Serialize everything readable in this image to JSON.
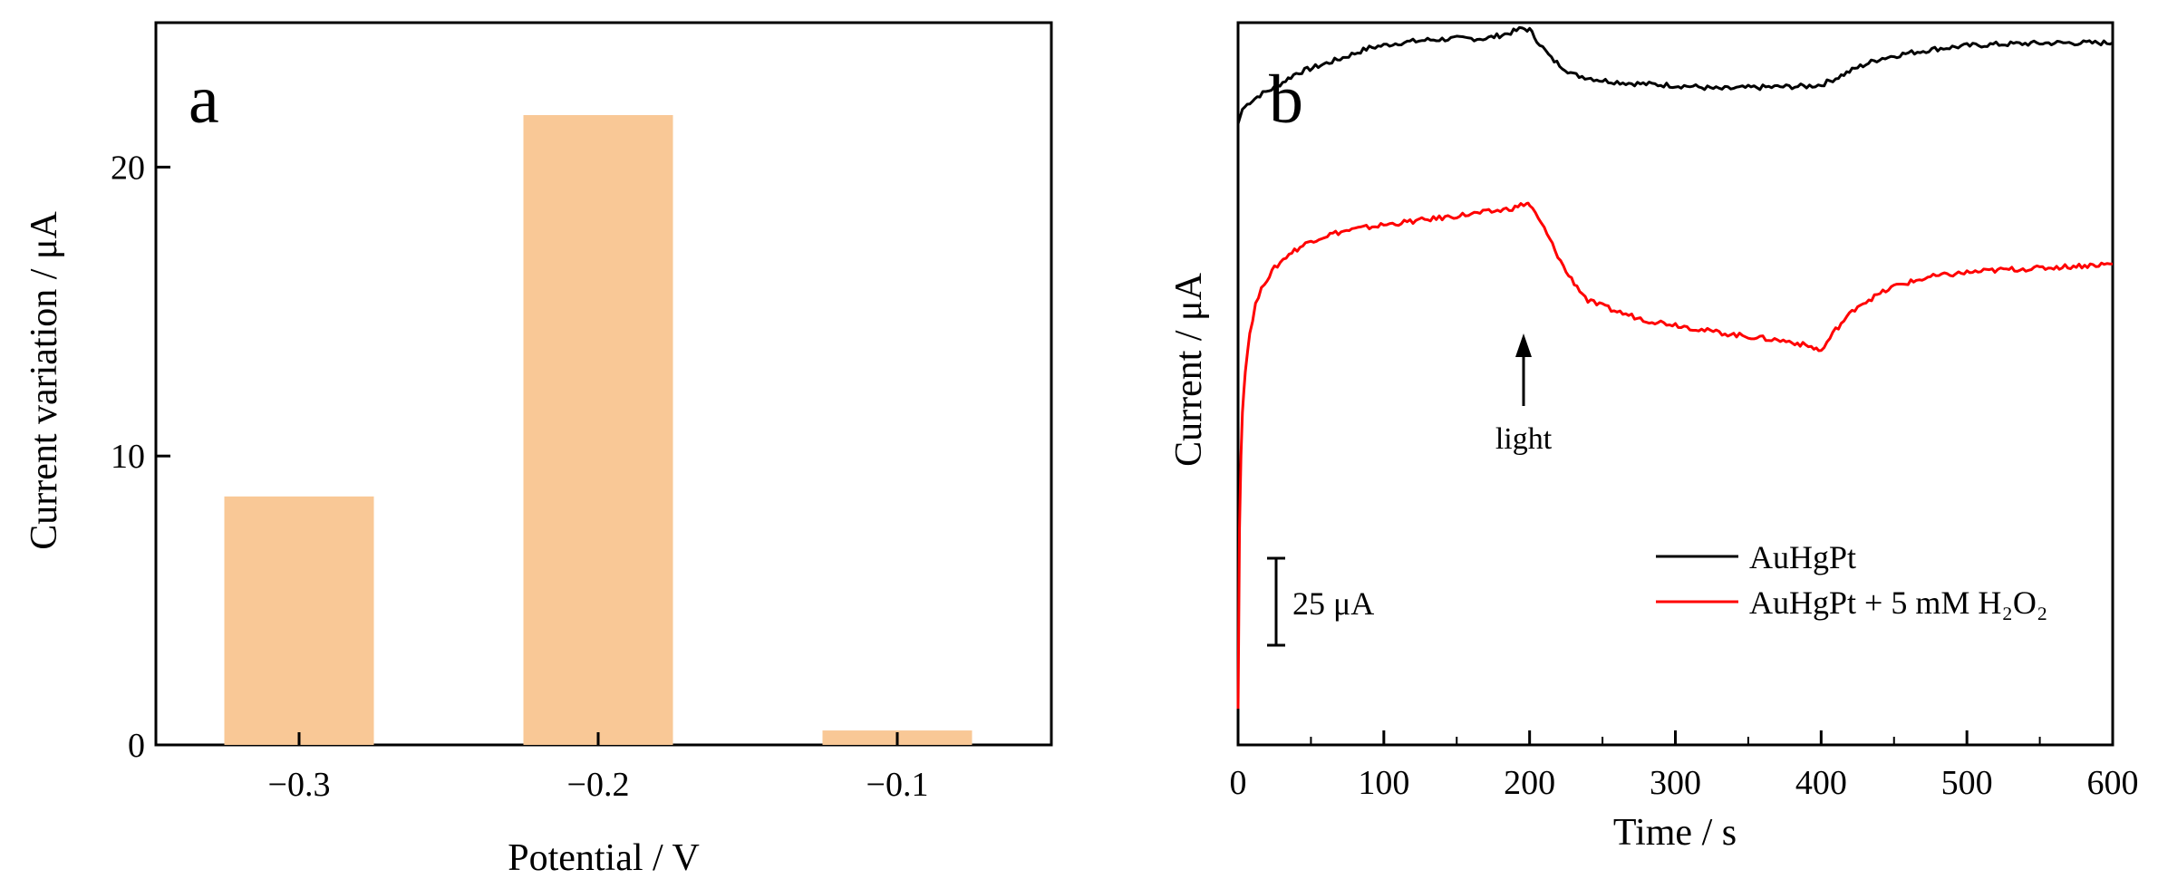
{
  "chart_data": [
    {
      "type": "bar",
      "panel_label": "a",
      "categories": [
        "−0.3",
        "−0.2",
        "−0.1"
      ],
      "values": [
        8.6,
        21.8,
        0.5
      ],
      "xlabel": "Potential / V",
      "ylabel": "Current variation / μA",
      "ylim": [
        0,
        25
      ],
      "yticks": [
        0,
        10,
        20
      ],
      "ytick_labels": [
        "0",
        "10",
        "20"
      ],
      "bar_color": "#f9c896",
      "grid": false
    },
    {
      "type": "line",
      "panel_label": "b",
      "xlabel": "Time / s",
      "ylabel": "Current /  μA",
      "xlim": [
        0,
        600
      ],
      "xticks": [
        0,
        100,
        200,
        300,
        400,
        500,
        600
      ],
      "xtick_labels": [
        "0",
        "100",
        "200",
        "300",
        "400",
        "500",
        "600"
      ],
      "yticks_shown": false,
      "y_units": "relative (scale bar)",
      "series": [
        {
          "name": "AuHgPt",
          "color": "#000000",
          "x": [
            0,
            3,
            8,
            15,
            25,
            40,
            55,
            70,
            90,
            110,
            130,
            150,
            170,
            185,
            195,
            200,
            205,
            215,
            230,
            250,
            270,
            290,
            310,
            330,
            350,
            370,
            390,
            400,
            410,
            425,
            440,
            460,
            480,
            500,
            520,
            540,
            560,
            580,
            600
          ],
          "y": [
            86,
            88,
            89,
            90,
            91,
            93,
            94,
            95,
            96.5,
            97.2,
            97.6,
            97.8,
            97.8,
            98.5,
            99.2,
            99.0,
            97.6,
            95.0,
            92.8,
            92.0,
            91.6,
            91.4,
            91.2,
            90.8,
            91.0,
            91.1,
            91.2,
            91.4,
            92.3,
            93.8,
            95.0,
            95.8,
            96.4,
            96.8,
            97.0,
            97.1,
            97.2,
            97.2,
            97.2
          ]
        },
        {
          "name": "AuHgPt + 5 mM H2O2",
          "color": "#ff0000",
          "x": [
            0,
            1,
            2,
            3,
            5,
            8,
            12,
            18,
            25,
            35,
            50,
            65,
            80,
            100,
            120,
            140,
            160,
            180,
            190,
            198,
            200,
            210,
            225,
            240,
            260,
            280,
            300,
            320,
            340,
            360,
            380,
            395,
            400,
            410,
            425,
            450,
            475,
            500,
            525,
            550,
            575,
            600
          ],
          "y": [
            5,
            30,
            40,
            46,
            52,
            57,
            61,
            64,
            66,
            68,
            69.8,
            70.8,
            71.4,
            72,
            72.5,
            73.0,
            73.5,
            74.0,
            74.4,
            75.0,
            74.8,
            71.5,
            65.5,
            61.5,
            60.0,
            58.8,
            58.2,
            57.4,
            56.8,
            56.3,
            55.8,
            55.0,
            54.5,
            57.5,
            60.8,
            63.5,
            64.8,
            65.4,
            65.8,
            66.0,
            66.3,
            66.6
          ]
        }
      ],
      "legend_position": "lower-right",
      "legend_entries": [
        "AuHgPt",
        "AuHgPt + 5 mM H₂O₂"
      ],
      "scale_bar": {
        "label": "25 μA",
        "value": 25
      },
      "annotations": [
        {
          "text": "light",
          "x": 200
        }
      ]
    }
  ]
}
